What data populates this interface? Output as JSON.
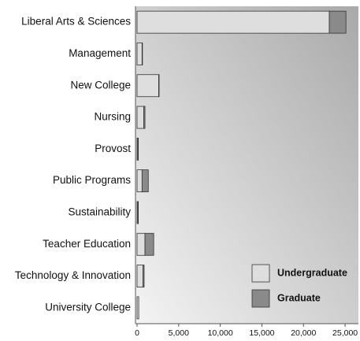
{
  "chart_data": {
    "type": "stacked_barh",
    "categories": [
      "Liberal Arts & Sciences",
      "Management",
      "New College",
      "Nursing",
      "Provost",
      "Public Programs",
      "Sustainability",
      "Teacher Education",
      "Technology & Innovation",
      "University College"
    ],
    "series": [
      {
        "name": "Undergraduate",
        "color": "#dedede",
        "values": [
          23100,
          600,
          2600,
          800,
          100,
          600,
          100,
          950,
          700,
          200
        ]
      },
      {
        "name": "Graduate",
        "color": "#8a8a8a",
        "values": [
          2000,
          50,
          50,
          150,
          50,
          750,
          50,
          1050,
          150,
          0
        ]
      }
    ],
    "xlim": [
      0,
      26600
    ],
    "xticks": [
      0,
      {
        "value": 5000,
        "label": "5,000"
      },
      {
        "value": 10000,
        "label": "10,000"
      },
      {
        "value": 15000,
        "label": "15,000"
      },
      {
        "value": 20000,
        "label": "20,000"
      },
      {
        "value": 25000,
        "label": "25,000"
      }
    ],
    "legend": "lower right"
  }
}
